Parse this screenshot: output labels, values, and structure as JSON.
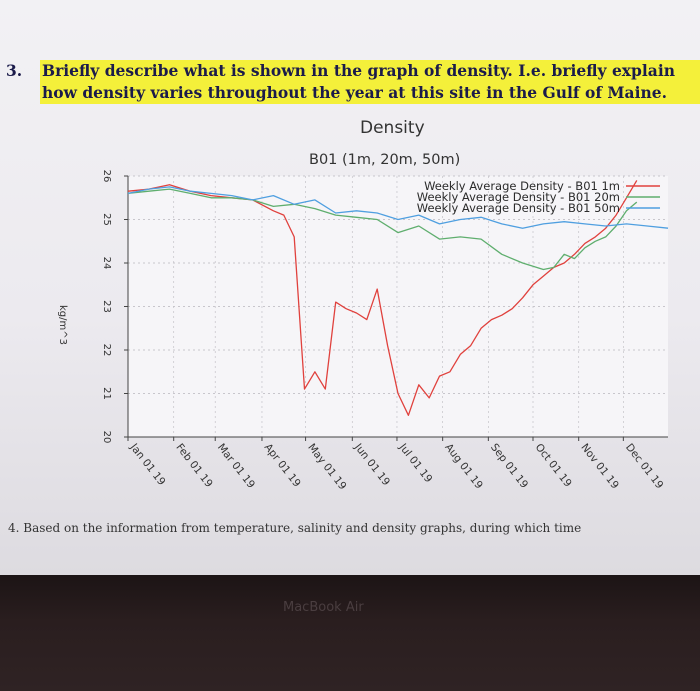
{
  "question": {
    "number": "3.",
    "text": "Briefly describe what is shown in the graph of density. I.e. briefly explain how density varies throughout the year at this site in the Gulf of Maine."
  },
  "footer_text": "4. Based on the information from temperature, salinity and density graphs, during which time",
  "laptop_brand": "MacBook Air",
  "chart_data": {
    "type": "line",
    "title": "Density",
    "subtitle": "B01 (1m, 20m, 50m)",
    "ylabel": "kg/m^3",
    "xlabel": "",
    "ylim": [
      20,
      26
    ],
    "yticks": [
      20,
      21,
      22,
      23,
      24,
      25,
      26
    ],
    "xlim": [
      0,
      52
    ],
    "xticks": [
      {
        "label": "Jan 01 19",
        "week": 0
      },
      {
        "label": "Feb 01 19",
        "week": 4.4
      },
      {
        "label": "Mar 01 19",
        "week": 8.4
      },
      {
        "label": "Apr 01 19",
        "week": 12.9
      },
      {
        "label": "May 01 19",
        "week": 17.1
      },
      {
        "label": "Jun 01 19",
        "week": 21.6
      },
      {
        "label": "Jul 01 19",
        "week": 25.9
      },
      {
        "label": "Aug 01 19",
        "week": 30.3
      },
      {
        "label": "Sep 01 19",
        "week": 34.7
      },
      {
        "label": "Oct 01 19",
        "week": 39.0
      },
      {
        "label": "Nov 01 19",
        "week": 43.4
      },
      {
        "label": "Dec 01 19",
        "week": 47.7
      }
    ],
    "grid": true,
    "legend_position": "top-right",
    "series": [
      {
        "name": "Weekly Average Density - B01 1m",
        "color": "#e0413d",
        "points": [
          [
            0,
            25.65
          ],
          [
            2,
            25.7
          ],
          [
            4,
            25.8
          ],
          [
            6,
            25.65
          ],
          [
            8,
            25.55
          ],
          [
            10,
            25.5
          ],
          [
            12,
            25.45
          ],
          [
            14,
            25.2
          ],
          [
            15,
            25.1
          ],
          [
            16,
            24.6
          ],
          [
            17,
            21.1
          ],
          [
            18,
            21.5
          ],
          [
            19,
            21.1
          ],
          [
            20,
            23.1
          ],
          [
            21,
            22.95
          ],
          [
            22,
            22.85
          ],
          [
            23,
            22.7
          ],
          [
            24,
            23.4
          ],
          [
            25,
            22.1
          ],
          [
            26,
            21.0
          ],
          [
            27,
            20.5
          ],
          [
            28,
            21.2
          ],
          [
            29,
            20.9
          ],
          [
            30,
            21.4
          ],
          [
            31,
            21.5
          ],
          [
            32,
            21.9
          ],
          [
            33,
            22.1
          ],
          [
            34,
            22.5
          ],
          [
            35,
            22.7
          ],
          [
            36,
            22.8
          ],
          [
            37,
            22.95
          ],
          [
            38,
            23.2
          ],
          [
            39,
            23.5
          ],
          [
            40,
            23.7
          ],
          [
            41,
            23.9
          ],
          [
            42,
            24.0
          ],
          [
            43,
            24.2
          ],
          [
            44,
            24.45
          ],
          [
            45,
            24.6
          ],
          [
            46,
            24.8
          ],
          [
            47,
            25.1
          ],
          [
            48,
            25.5
          ],
          [
            49,
            25.9
          ]
        ]
      },
      {
        "name": "Weekly Average Density - B01 20m",
        "color": "#5fae6e",
        "points": [
          [
            0,
            25.6
          ],
          [
            2,
            25.65
          ],
          [
            4,
            25.7
          ],
          [
            6,
            25.6
          ],
          [
            8,
            25.5
          ],
          [
            10,
            25.5
          ],
          [
            12,
            25.45
          ],
          [
            14,
            25.3
          ],
          [
            16,
            25.35
          ],
          [
            18,
            25.25
          ],
          [
            20,
            25.1
          ],
          [
            22,
            25.05
          ],
          [
            24,
            25.0
          ],
          [
            26,
            24.7
          ],
          [
            28,
            24.85
          ],
          [
            30,
            24.55
          ],
          [
            32,
            24.6
          ],
          [
            34,
            24.55
          ],
          [
            36,
            24.2
          ],
          [
            38,
            24.0
          ],
          [
            40,
            23.85
          ],
          [
            41,
            23.9
          ],
          [
            42,
            24.2
          ],
          [
            43,
            24.1
          ],
          [
            44,
            24.35
          ],
          [
            45,
            24.5
          ],
          [
            46,
            24.6
          ],
          [
            47,
            24.85
          ],
          [
            48,
            25.2
          ],
          [
            49,
            25.4
          ]
        ]
      },
      {
        "name": "Weekly Average Density - B01 50m",
        "color": "#4f9fe0",
        "points": [
          [
            0,
            25.6
          ],
          [
            2,
            25.7
          ],
          [
            4,
            25.75
          ],
          [
            6,
            25.65
          ],
          [
            8,
            25.6
          ],
          [
            10,
            25.55
          ],
          [
            12,
            25.45
          ],
          [
            14,
            25.55
          ],
          [
            16,
            25.35
          ],
          [
            18,
            25.45
          ],
          [
            20,
            25.15
          ],
          [
            22,
            25.2
          ],
          [
            24,
            25.15
          ],
          [
            26,
            25.0
          ],
          [
            28,
            25.1
          ],
          [
            30,
            24.9
          ],
          [
            32,
            25.0
          ],
          [
            34,
            25.05
          ],
          [
            36,
            24.9
          ],
          [
            38,
            24.8
          ],
          [
            40,
            24.9
          ],
          [
            42,
            24.95
          ],
          [
            44,
            24.9
          ],
          [
            46,
            24.85
          ],
          [
            48,
            24.9
          ],
          [
            50,
            24.85
          ],
          [
            52,
            24.8
          ]
        ]
      }
    ]
  }
}
